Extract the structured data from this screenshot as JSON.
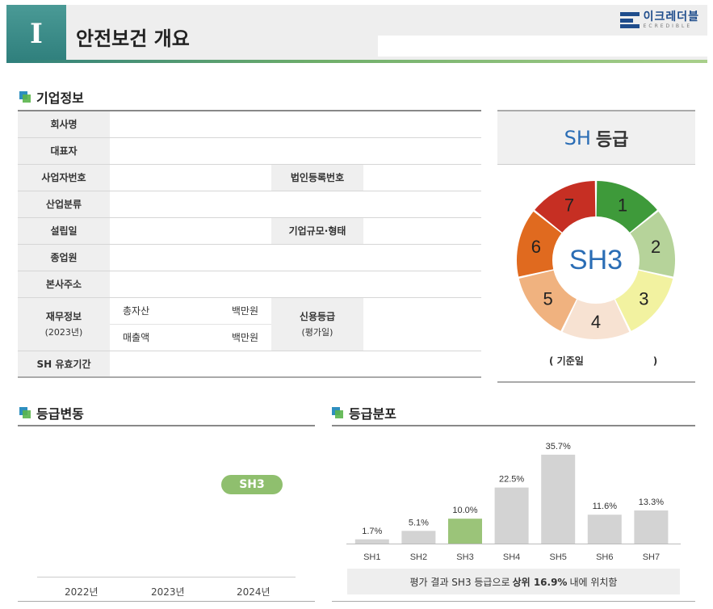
{
  "header": {
    "badge": "I",
    "title": "안전보건 개요",
    "logo_name": "이크레더블",
    "logo_sub": "ECREDIBLE"
  },
  "company": {
    "heading": "기업정보",
    "labels": {
      "name": "회사명",
      "ceo": "대표자",
      "bizno": "사업자번호",
      "corpno": "법인등록번호",
      "industry": "산업분류",
      "founded": "설립일",
      "size": "기업규모·형태",
      "employees": "종업원",
      "address": "본사주소",
      "finance": "재무정보",
      "finance_year": "(2023년)",
      "credit": "신용등급",
      "credit_sub": "(평가일)",
      "validity": "SH 유효기간"
    },
    "finance": {
      "assets_label": "총자산",
      "sales_label": "매출액",
      "unit": "백만원"
    }
  },
  "grade": {
    "title_prefix": "SH",
    "title_suffix": "등급",
    "current": "SH3",
    "base_date_label": "( 기준일",
    "base_date_close": ")",
    "segments": [
      {
        "label": "1",
        "color": "#3e9a3a"
      },
      {
        "label": "2",
        "color": "#b6d39a"
      },
      {
        "label": "3",
        "color": "#f2f2a0"
      },
      {
        "label": "4",
        "color": "#f7e2d2"
      },
      {
        "label": "5",
        "color": "#f0b27f"
      },
      {
        "label": "6",
        "color": "#e06a1f"
      },
      {
        "label": "7",
        "color": "#c62f23"
      }
    ],
    "center_color": "#2a6db5"
  },
  "history": {
    "heading": "등급변동",
    "badge": "SH3",
    "years": [
      "2022년",
      "2023년",
      "2024년"
    ]
  },
  "chart_data": {
    "type": "bar",
    "title": "등급분포",
    "categories": [
      "SH1",
      "SH2",
      "SH3",
      "SH4",
      "SH5",
      "SH6",
      "SH7"
    ],
    "values": [
      1.7,
      5.1,
      10.0,
      22.5,
      35.7,
      11.6,
      13.3
    ],
    "value_labels": [
      "1.7%",
      "5.1%",
      "10.0%",
      "22.5%",
      "35.7%",
      "11.6%",
      "13.3%"
    ],
    "highlight": "SH3",
    "colors": {
      "default": "#d3d3d3",
      "highlight": "#9bc479"
    },
    "ylim": [
      0,
      40
    ],
    "summary_pre": "평가 결과 SH3 등급으로",
    "summary_bold": "상위 16.9%",
    "summary_post": "내에 위치함"
  }
}
